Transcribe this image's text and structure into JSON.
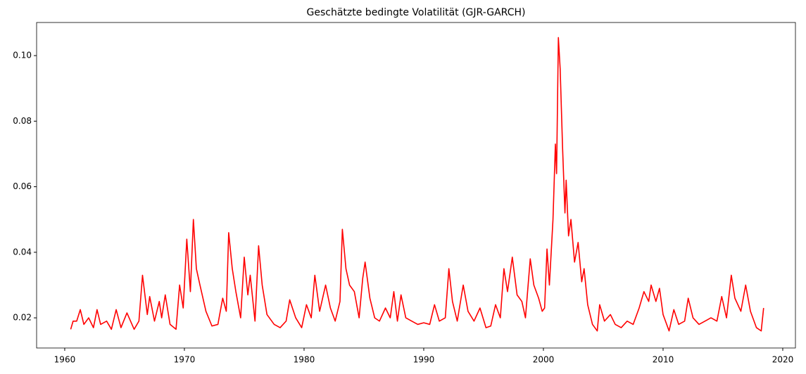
{
  "chart_data": {
    "type": "line",
    "title": "Geschätzte bedingte Volatilität (GJR-GARCH)",
    "x": [
      1960.5,
      1960.7,
      1961.0,
      1961.3,
      1961.6,
      1962.0,
      1962.4,
      1962.7,
      1963.0,
      1963.5,
      1963.9,
      1964.3,
      1964.7,
      1965.2,
      1965.8,
      1966.2,
      1966.5,
      1966.9,
      1967.1,
      1967.5,
      1967.9,
      1968.1,
      1968.4,
      1968.8,
      1969.3,
      1969.6,
      1969.9,
      1970.2,
      1970.5,
      1970.75,
      1971.0,
      1971.3,
      1971.8,
      1972.3,
      1972.8,
      1973.2,
      1973.5,
      1973.7,
      1974.0,
      1974.3,
      1974.7,
      1975.0,
      1975.3,
      1975.5,
      1975.9,
      1976.2,
      1976.5,
      1976.9,
      1977.5,
      1978.0,
      1978.5,
      1978.8,
      1979.3,
      1979.8,
      1980.2,
      1980.6,
      1980.9,
      1981.3,
      1981.8,
      1982.2,
      1982.6,
      1983.0,
      1983.2,
      1983.5,
      1983.8,
      1984.2,
      1984.6,
      1984.9,
      1985.1,
      1985.5,
      1985.9,
      1986.3,
      1986.8,
      1987.2,
      1987.5,
      1987.8,
      1988.1,
      1988.5,
      1989.0,
      1989.5,
      1990.0,
      1990.5,
      1990.9,
      1991.3,
      1991.8,
      1992.1,
      1992.4,
      1992.8,
      1993.3,
      1993.7,
      1994.2,
      1994.7,
      1995.2,
      1995.6,
      1996.0,
      1996.4,
      1996.7,
      1997.0,
      1997.4,
      1997.8,
      1998.2,
      1998.5,
      1998.9,
      1999.2,
      1999.6,
      1999.9,
      2000.1,
      2000.3,
      2000.5,
      2000.8,
      2001.0,
      2001.1,
      2001.25,
      2001.4,
      2001.6,
      2001.8,
      2001.9,
      2002.1,
      2002.3,
      2002.6,
      2002.9,
      2003.2,
      2003.4,
      2003.7,
      2004.1,
      2004.5,
      2004.7,
      2005.1,
      2005.6,
      2006.0,
      2006.5,
      2007.0,
      2007.5,
      2008.0,
      2008.4,
      2008.8,
      2009.0,
      2009.4,
      2009.7,
      2010.0,
      2010.5,
      2010.9,
      2011.3,
      2011.8,
      2012.1,
      2012.5,
      2013.0,
      2013.5,
      2014.0,
      2014.5,
      2014.9,
      2015.3,
      2015.7,
      2016.0,
      2016.5,
      2016.9,
      2017.3,
      2017.8,
      2018.2,
      2018.4
    ],
    "series": [
      {
        "color": "#ff0000",
        "values": [
          0.0165,
          0.019,
          0.019,
          0.0225,
          0.018,
          0.02,
          0.017,
          0.0225,
          0.018,
          0.019,
          0.0165,
          0.0225,
          0.017,
          0.0215,
          0.0165,
          0.019,
          0.033,
          0.021,
          0.0265,
          0.019,
          0.025,
          0.02,
          0.027,
          0.018,
          0.0165,
          0.03,
          0.023,
          0.044,
          0.028,
          0.05,
          0.035,
          0.03,
          0.022,
          0.0175,
          0.018,
          0.026,
          0.022,
          0.046,
          0.035,
          0.028,
          0.02,
          0.0385,
          0.027,
          0.033,
          0.019,
          0.042,
          0.03,
          0.021,
          0.018,
          0.017,
          0.019,
          0.0255,
          0.02,
          0.017,
          0.024,
          0.02,
          0.033,
          0.022,
          0.03,
          0.023,
          0.019,
          0.025,
          0.047,
          0.035,
          0.03,
          0.028,
          0.02,
          0.032,
          0.037,
          0.026,
          0.02,
          0.019,
          0.023,
          0.02,
          0.028,
          0.019,
          0.027,
          0.02,
          0.019,
          0.018,
          0.0185,
          0.018,
          0.024,
          0.019,
          0.02,
          0.035,
          0.025,
          0.019,
          0.03,
          0.022,
          0.019,
          0.023,
          0.017,
          0.0175,
          0.024,
          0.02,
          0.035,
          0.028,
          0.0385,
          0.027,
          0.025,
          0.02,
          0.038,
          0.03,
          0.026,
          0.022,
          0.023,
          0.041,
          0.03,
          0.05,
          0.073,
          0.064,
          0.1055,
          0.096,
          0.072,
          0.052,
          0.062,
          0.045,
          0.05,
          0.037,
          0.043,
          0.031,
          0.035,
          0.024,
          0.018,
          0.016,
          0.024,
          0.019,
          0.021,
          0.018,
          0.017,
          0.019,
          0.018,
          0.023,
          0.028,
          0.025,
          0.03,
          0.025,
          0.029,
          0.021,
          0.016,
          0.0225,
          0.018,
          0.019,
          0.026,
          0.02,
          0.018,
          0.019,
          0.02,
          0.019,
          0.0265,
          0.02,
          0.033,
          0.026,
          0.022,
          0.03,
          0.022,
          0.017,
          0.016,
          0.023
        ]
      }
    ],
    "xlim": [
      1957.65,
      2021.06
    ],
    "xticks": [
      1960,
      1970,
      1980,
      1990,
      2000,
      2010,
      2020
    ],
    "ylim": [
      0.0108,
      0.1101
    ],
    "yticks": [
      0.02,
      0.04,
      0.06,
      0.08,
      {
        "value": 0.1,
        "label": "0.10"
      }
    ],
    "grid": false
  }
}
